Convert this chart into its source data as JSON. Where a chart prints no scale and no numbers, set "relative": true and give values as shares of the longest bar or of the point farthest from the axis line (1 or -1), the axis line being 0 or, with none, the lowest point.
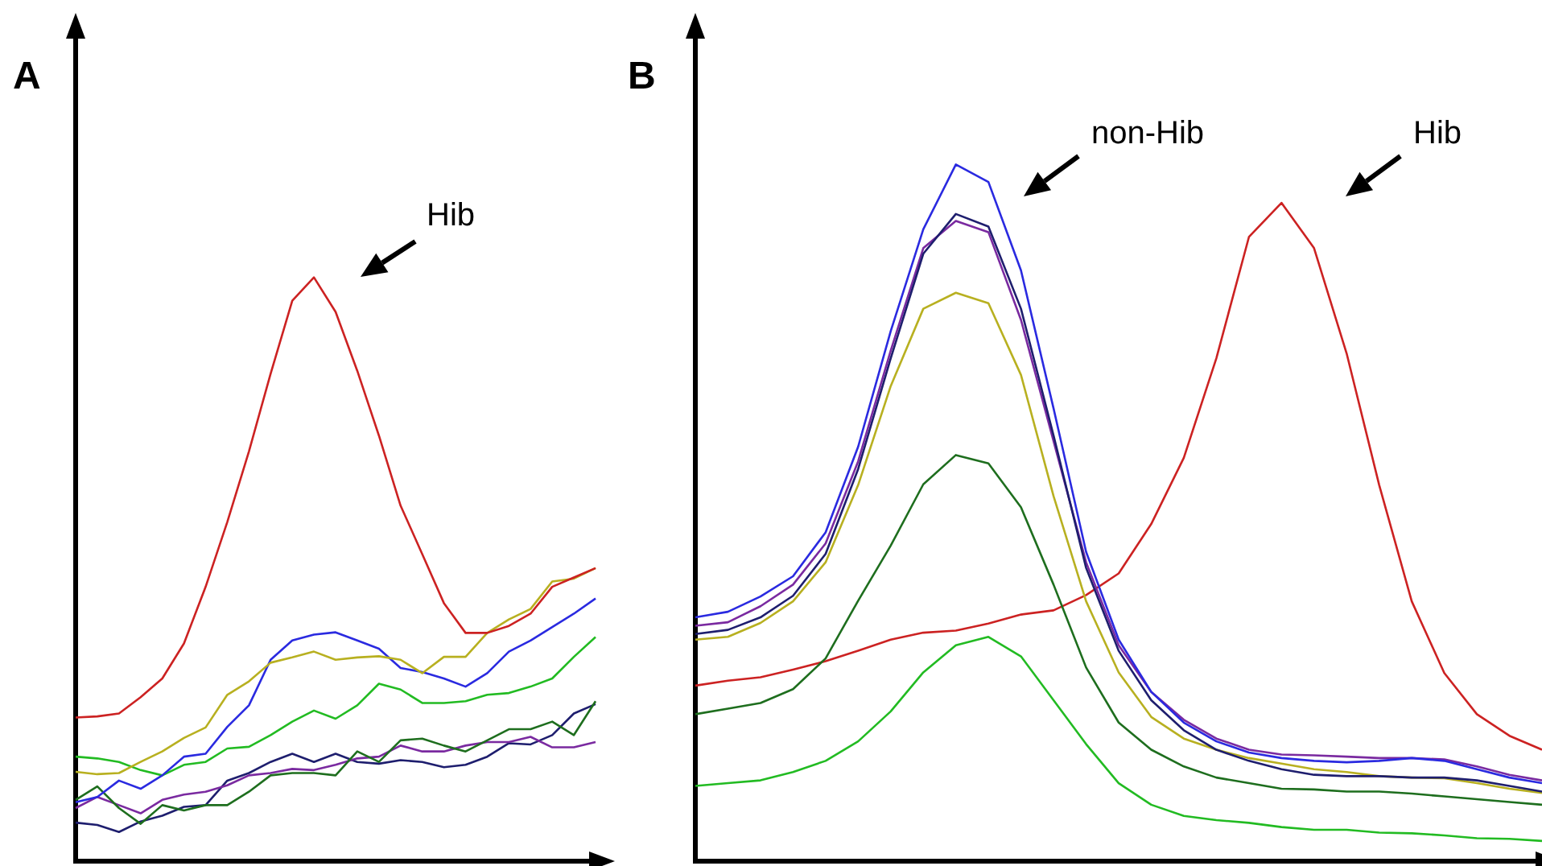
{
  "chart_data": [
    {
      "type": "line",
      "title": "A",
      "relative": true,
      "annotations": [
        "Hib"
      ],
      "categories": [
        null,
        null,
        null,
        null,
        null,
        null,
        null,
        null,
        null,
        null,
        null,
        null,
        null,
        null,
        null,
        null,
        null,
        null,
        null,
        null,
        null,
        null,
        null,
        null,
        null
      ],
      "series": [
        {
          "color": "#cc2222",
          "values": [
            0.246,
            0.248,
            0.253,
            0.281,
            0.313,
            0.373,
            0.47,
            0.581,
            0.702,
            0.835,
            0.96,
            1.0,
            0.941,
            0.84,
            0.729,
            0.609,
            0.526,
            0.442,
            0.391,
            0.391,
            0.403,
            0.424,
            0.47,
            0.486,
            0.502
          ]
        },
        {
          "color": "#b8b020",
          "values": [
            0.153,
            0.149,
            0.151,
            0.17,
            0.188,
            0.211,
            0.229,
            0.285,
            0.308,
            0.34,
            0.349,
            0.359,
            0.345,
            0.349,
            0.351,
            0.345,
            0.322,
            0.35,
            0.35,
            0.391,
            0.414,
            0.432,
            0.479,
            0.484,
            0.502
          ]
        },
        {
          "color": "#2a2ae0",
          "values": [
            0.101,
            0.11,
            0.138,
            0.124,
            0.147,
            0.179,
            0.184,
            0.23,
            0.267,
            0.345,
            0.378,
            0.388,
            0.392,
            0.378,
            0.364,
            0.331,
            0.324,
            0.313,
            0.299,
            0.322,
            0.359,
            0.378,
            0.401,
            0.424,
            0.45
          ]
        },
        {
          "color": "#22bb22",
          "values": [
            0.179,
            0.176,
            0.17,
            0.156,
            0.147,
            0.165,
            0.17,
            0.193,
            0.196,
            0.216,
            0.239,
            0.258,
            0.244,
            0.267,
            0.304,
            0.294,
            0.271,
            0.271,
            0.274,
            0.285,
            0.288,
            0.299,
            0.313,
            0.35,
            0.384
          ]
        },
        {
          "color": "#1e6e1e",
          "values": [
            0.105,
            0.128,
            0.091,
            0.064,
            0.096,
            0.087,
            0.096,
            0.096,
            0.119,
            0.147,
            0.151,
            0.151,
            0.147,
            0.188,
            0.17,
            0.207,
            0.21,
            0.198,
            0.188,
            0.207,
            0.226,
            0.226,
            0.239,
            0.216,
            0.274
          ]
        },
        {
          "color": "#7a2aa0",
          "values": [
            0.091,
            0.11,
            0.096,
            0.082,
            0.105,
            0.114,
            0.119,
            0.13,
            0.147,
            0.151,
            0.158,
            0.156,
            0.165,
            0.176,
            0.179,
            0.198,
            0.188,
            0.188,
            0.198,
            0.204,
            0.204,
            0.213,
            0.195,
            0.195,
            0.204
          ]
        },
        {
          "color": "#1e1e6e",
          "values": [
            0.066,
            0.062,
            0.05,
            0.068,
            0.078,
            0.093,
            0.096,
            0.138,
            0.151,
            0.17,
            0.184,
            0.17,
            0.184,
            0.17,
            0.167,
            0.173,
            0.17,
            0.161,
            0.165,
            0.179,
            0.202,
            0.2,
            0.216,
            0.253,
            0.269
          ]
        }
      ]
    },
    {
      "type": "line",
      "title": "B",
      "relative": true,
      "annotations": [
        "non-Hib",
        "Hib"
      ],
      "categories": [
        null,
        null,
        null,
        null,
        null,
        null,
        null,
        null,
        null,
        null,
        null,
        null,
        null,
        null,
        null,
        null,
        null,
        null,
        null,
        null,
        null,
        null,
        null,
        null,
        null,
        null,
        null
      ],
      "series": [
        {
          "color": "#2a2ae0",
          "values": [
            0.35,
            0.358,
            0.38,
            0.409,
            0.472,
            0.595,
            0.761,
            0.907,
            1.0,
            0.975,
            0.848,
            0.65,
            0.444,
            0.318,
            0.243,
            0.199,
            0.172,
            0.156,
            0.148,
            0.144,
            0.142,
            0.144,
            0.148,
            0.144,
            0.132,
            0.12,
            0.112
          ]
        },
        {
          "color": "#1e1e6e",
          "values": [
            0.326,
            0.332,
            0.35,
            0.381,
            0.441,
            0.563,
            0.722,
            0.872,
            0.929,
            0.911,
            0.793,
            0.611,
            0.421,
            0.302,
            0.231,
            0.188,
            0.16,
            0.144,
            0.132,
            0.124,
            0.122,
            0.122,
            0.12,
            0.12,
            0.116,
            0.108,
            0.1
          ]
        },
        {
          "color": "#7a2aa0",
          "values": [
            0.338,
            0.343,
            0.366,
            0.397,
            0.456,
            0.574,
            0.733,
            0.88,
            0.919,
            0.903,
            0.777,
            0.603,
            0.429,
            0.31,
            0.243,
            0.203,
            0.176,
            0.16,
            0.153,
            0.152,
            0.15,
            0.148,
            0.148,
            0.146,
            0.136,
            0.124,
            0.116
          ]
        },
        {
          "color": "#b8b020",
          "values": [
            0.318,
            0.322,
            0.342,
            0.373,
            0.429,
            0.54,
            0.682,
            0.793,
            0.816,
            0.801,
            0.698,
            0.524,
            0.373,
            0.271,
            0.207,
            0.176,
            0.16,
            0.148,
            0.14,
            0.132,
            0.128,
            0.122,
            0.12,
            0.119,
            0.112,
            0.104,
            0.098
          ]
        },
        {
          "color": "#1e6e1e",
          "values": [
            0.211,
            0.219,
            0.227,
            0.247,
            0.291,
            0.374,
            0.453,
            0.541,
            0.583,
            0.571,
            0.508,
            0.397,
            0.278,
            0.199,
            0.16,
            0.136,
            0.12,
            0.112,
            0.104,
            0.103,
            0.1,
            0.1,
            0.097,
            0.093,
            0.089,
            0.085,
            0.081
          ]
        },
        {
          "color": "#22bb22",
          "values": [
            0.108,
            0.112,
            0.116,
            0.128,
            0.144,
            0.172,
            0.215,
            0.271,
            0.31,
            0.322,
            0.294,
            0.231,
            0.168,
            0.112,
            0.081,
            0.065,
            0.059,
            0.055,
            0.049,
            0.045,
            0.045,
            0.041,
            0.04,
            0.037,
            0.033,
            0.032,
            0.029
          ]
        },
        {
          "color": "#cc2222",
          "values": [
            0.252,
            0.259,
            0.264,
            0.275,
            0.287,
            0.302,
            0.318,
            0.328,
            0.331,
            0.341,
            0.354,
            0.36,
            0.382,
            0.413,
            0.484,
            0.579,
            0.722,
            0.896,
            0.945,
            0.88,
            0.729,
            0.54,
            0.373,
            0.27,
            0.211,
            0.18,
            0.16
          ]
        }
      ]
    }
  ]
}
